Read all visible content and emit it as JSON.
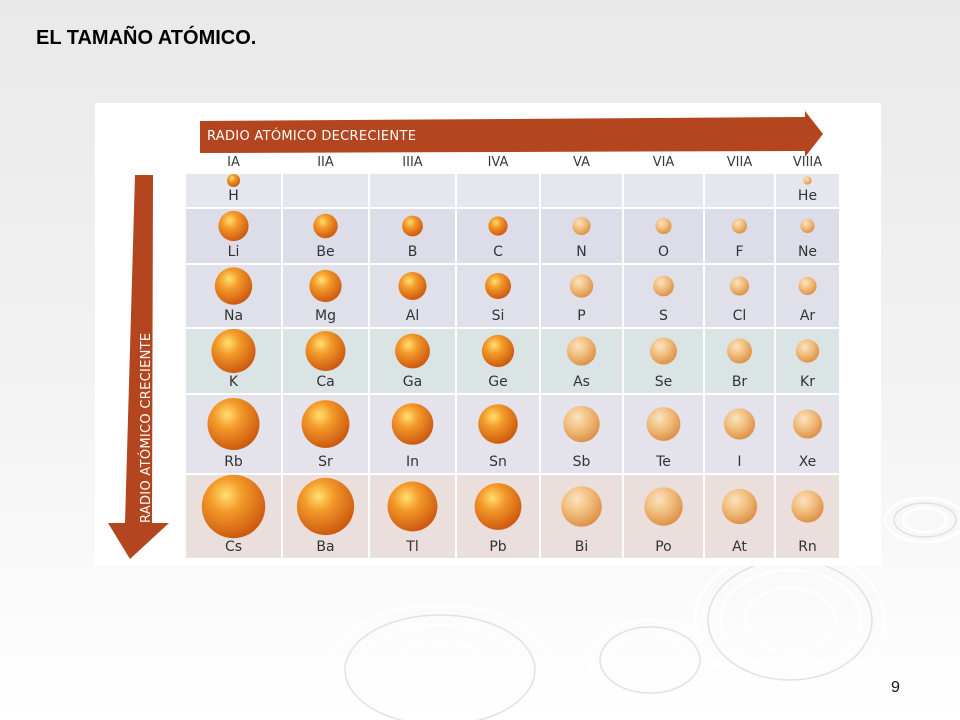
{
  "slide": {
    "title": "EL TAMAÑO ATÓMICO.",
    "page_number": "9"
  },
  "figure": {
    "arrow_horizontal_label": "RADIO ATÓMICO DECRECIENTE",
    "arrow_vertical_label": "RADIO ATÓMICO CRECIENTE",
    "groups": [
      "IA",
      "IIA",
      "IIIA",
      "IVA",
      "VA",
      "VIA",
      "VIIA",
      "VIIIA"
    ],
    "rows": [
      {
        "cells": [
          {
            "symbol": "H",
            "size": 0.25
          },
          null,
          null,
          null,
          null,
          null,
          null,
          {
            "symbol": "He",
            "size": 0.16
          }
        ]
      },
      {
        "cells": [
          {
            "symbol": "Li",
            "size": 0.58
          },
          {
            "symbol": "Be",
            "size": 0.47
          },
          {
            "symbol": "B",
            "size": 0.4
          },
          {
            "symbol": "C",
            "size": 0.37
          },
          {
            "symbol": "N",
            "size": 0.35
          },
          {
            "symbol": "O",
            "size": 0.31
          },
          {
            "symbol": "F",
            "size": 0.29
          },
          {
            "symbol": "Ne",
            "size": 0.27
          }
        ]
      },
      {
        "cells": [
          {
            "symbol": "Na",
            "size": 0.72
          },
          {
            "symbol": "Mg",
            "size": 0.62
          },
          {
            "symbol": "Al",
            "size": 0.54
          },
          {
            "symbol": "Si",
            "size": 0.5
          },
          {
            "symbol": "P",
            "size": 0.45
          },
          {
            "symbol": "S",
            "size": 0.4
          },
          {
            "symbol": "Cl",
            "size": 0.37
          },
          {
            "symbol": "Ar",
            "size": 0.35
          }
        ]
      },
      {
        "cells": [
          {
            "symbol": "K",
            "size": 0.85
          },
          {
            "symbol": "Ca",
            "size": 0.77
          },
          {
            "symbol": "Ga",
            "size": 0.67
          },
          {
            "symbol": "Ge",
            "size": 0.62
          },
          {
            "symbol": "As",
            "size": 0.56
          },
          {
            "symbol": "Se",
            "size": 0.52
          },
          {
            "symbol": "Br",
            "size": 0.48
          },
          {
            "symbol": "Kr",
            "size": 0.45
          }
        ]
      },
      {
        "cells": [
          {
            "symbol": "Rb",
            "size": 1.0
          },
          {
            "symbol": "Sr",
            "size": 0.92
          },
          {
            "symbol": "In",
            "size": 0.8
          },
          {
            "symbol": "Sn",
            "size": 0.76
          },
          {
            "symbol": "Sb",
            "size": 0.7
          },
          {
            "symbol": "Te",
            "size": 0.65
          },
          {
            "symbol": "I",
            "size": 0.6
          },
          {
            "symbol": "Xe",
            "size": 0.56
          }
        ]
      },
      {
        "cells": [
          {
            "symbol": "Cs",
            "size": 1.22
          },
          {
            "symbol": "Ba",
            "size": 1.1
          },
          {
            "symbol": "Tl",
            "size": 0.96
          },
          {
            "symbol": "Pb",
            "size": 0.9
          },
          {
            "symbol": "Bi",
            "size": 0.78
          },
          {
            "symbol": "Po",
            "size": 0.74
          },
          {
            "symbol": "At",
            "size": 0.68
          },
          {
            "symbol": "Rn",
            "size": 0.62
          }
        ]
      }
    ],
    "colors": {
      "arrow": "#b3451f",
      "cell_border": "#ffffff",
      "row_backgrounds": [
        "#e6e6ee",
        "#dcdde8",
        "#dfe0ea",
        "#dbe4e4",
        "#e4e2ea",
        "#eadfdc"
      ],
      "atom_core": "#e06e14",
      "atom_light": "#efc89a"
    }
  }
}
